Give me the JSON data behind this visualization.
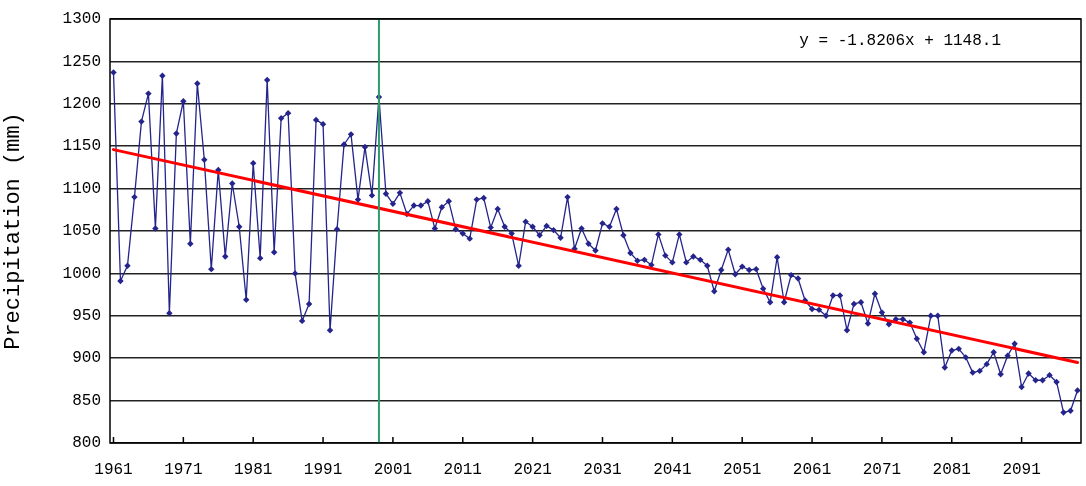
{
  "chart_data": {
    "type": "line",
    "ylabel": "Precipitation (mm)",
    "annotations": [
      "y = -1.8206x + 1148.1"
    ],
    "x": [
      1961,
      1962,
      1963,
      1964,
      1965,
      1966,
      1967,
      1968,
      1969,
      1970,
      1971,
      1972,
      1973,
      1974,
      1975,
      1976,
      1977,
      1978,
      1979,
      1980,
      1981,
      1982,
      1983,
      1984,
      1985,
      1986,
      1987,
      1988,
      1989,
      1990,
      1991,
      1992,
      1993,
      1994,
      1995,
      1996,
      1997,
      1998,
      1999,
      2000,
      2001,
      2002,
      2003,
      2004,
      2005,
      2006,
      2007,
      2008,
      2009,
      2010,
      2011,
      2012,
      2013,
      2014,
      2015,
      2016,
      2017,
      2018,
      2019,
      2020,
      2021,
      2022,
      2023,
      2024,
      2025,
      2026,
      2027,
      2028,
      2029,
      2030,
      2031,
      2032,
      2033,
      2034,
      2035,
      2036,
      2037,
      2038,
      2039,
      2040,
      2041,
      2042,
      2043,
      2044,
      2045,
      2046,
      2047,
      2048,
      2049,
      2050,
      2051,
      2052,
      2053,
      2054,
      2055,
      2056,
      2057,
      2058,
      2059,
      2060,
      2061,
      2062,
      2063,
      2064,
      2065,
      2066,
      2067,
      2068,
      2069,
      2070,
      2071,
      2072,
      2073,
      2074,
      2075,
      2076,
      2077,
      2078,
      2079,
      2080,
      2081,
      2082,
      2083,
      2084,
      2085,
      2086,
      2087,
      2088,
      2089,
      2090,
      2091,
      2092,
      2093,
      2094,
      2095,
      2096,
      2097,
      2098,
      2099
    ],
    "series": [
      {
        "color": "#24248c",
        "marker": "diamond",
        "values": [
          1237,
          991,
          1009,
          1090,
          1179,
          1212,
          1053,
          1233,
          953,
          1165,
          1203,
          1035,
          1224,
          1134,
          1005,
          1122,
          1020,
          1106,
          1055,
          969,
          1130,
          1018,
          1228,
          1025,
          1183,
          1189,
          1000,
          944,
          964,
          1181,
          1176,
          933,
          1052,
          1152,
          1164,
          1087,
          1149,
          1092,
          1208,
          1094,
          1082,
          1095,
          1070,
          1080,
          1080,
          1085,
          1053,
          1078,
          1085,
          1052,
          1047,
          1041,
          1087,
          1089,
          1054,
          1076,
          1055,
          1047,
          1009,
          1061,
          1055,
          1045,
          1056,
          1051,
          1042,
          1090,
          1029,
          1053,
          1035,
          1027,
          1059,
          1055,
          1076,
          1045,
          1024,
          1015,
          1016,
          1010,
          1046,
          1021,
          1013,
          1046,
          1013,
          1020,
          1016,
          1009,
          979,
          1004,
          1028,
          999,
          1008,
          1004,
          1005,
          982,
          966,
          1019,
          966,
          998,
          994,
          968,
          958,
          957,
          950,
          974,
          974,
          933,
          964,
          966,
          941,
          976,
          954,
          940,
          946,
          946,
          942,
          923,
          907,
          950,
          950,
          889,
          909,
          911,
          901,
          883,
          885,
          893,
          907,
          881,
          903,
          917,
          866,
          882,
          874,
          874,
          880,
          872,
          836,
          838,
          862
        ]
      },
      {
        "type": "line",
        "color": "#ff0000",
        "marker": "none",
        "x": [
          1961,
          2099
        ],
        "values": [
          1146,
          895
        ]
      }
    ],
    "ref_lines": [
      {
        "axis": "x",
        "value": 1999,
        "color": "#2e9b6b"
      }
    ],
    "xlim": [
      1960.5,
      2099.5
    ],
    "xticks": [
      1961,
      1971,
      1981,
      1991,
      2001,
      2011,
      2021,
      2031,
      2041,
      2051,
      2061,
      2071,
      2081,
      2091
    ],
    "ylim": [
      800,
      1300
    ],
    "yticks": [
      800,
      850,
      900,
      950,
      1000,
      1050,
      1100,
      1150,
      1200,
      1250,
      1300
    ],
    "grid": "y"
  }
}
